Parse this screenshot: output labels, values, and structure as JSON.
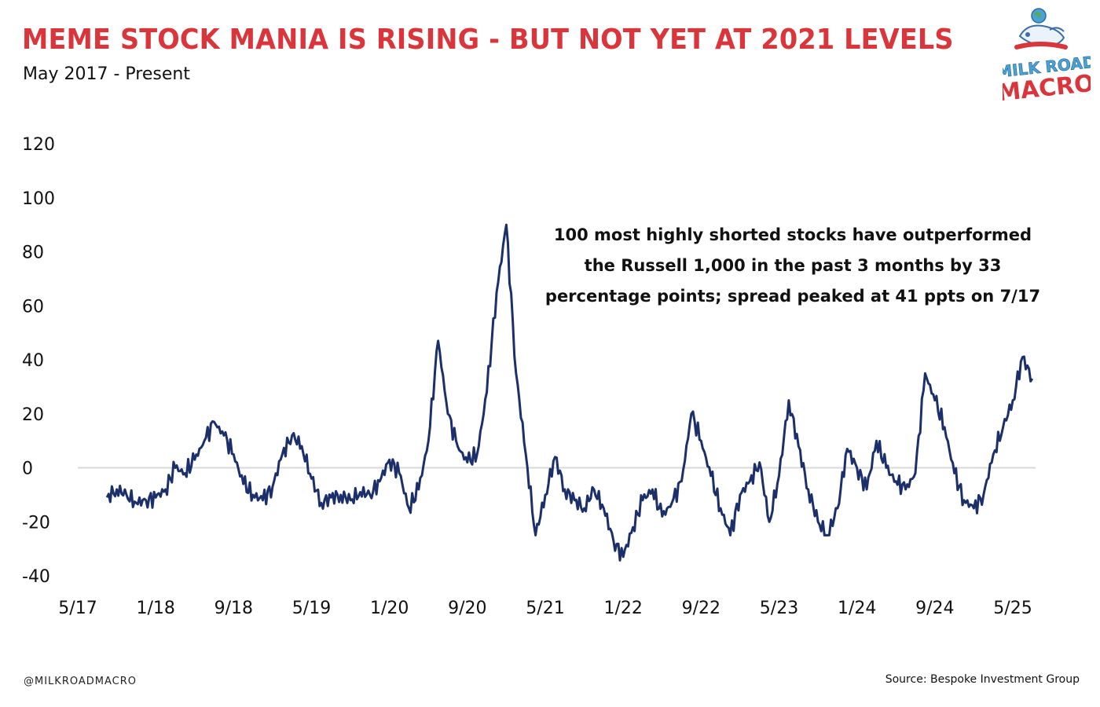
{
  "header": {
    "title": "MEME STOCK MANIA IS RISING - BUT NOT YET AT 2021 LEVELS",
    "subtitle": "May 2017 - Present"
  },
  "logo": {
    "line1": "MILK ROAD",
    "line2": "MACRO",
    "icon": "cow-globe-logo-icon"
  },
  "footer": {
    "handle": "@MILKROADMACRO",
    "source": "Source: Bespoke Investment Group"
  },
  "colors": {
    "title": "#d9353b",
    "line": "#1b2f6b",
    "zero_line": "#d9d9d9",
    "text": "#111111"
  },
  "chart_data": {
    "type": "line",
    "title": "",
    "xlabel": "",
    "ylabel": "",
    "ylim": [
      -40,
      120
    ],
    "yticks": [
      "120",
      "100",
      "80",
      "60",
      "40",
      "20",
      "0",
      "-20",
      "-40"
    ],
    "xticks": [
      "5/17",
      "1/18",
      "9/18",
      "5/19",
      "1/20",
      "9/20",
      "5/21",
      "1/22",
      "9/22",
      "5/23",
      "1/24",
      "9/24",
      "5/25"
    ],
    "grid": false,
    "legend": "none",
    "annotation": {
      "lines": [
        "100 most highly shorted stocks have outperformed",
        "the Russell 1,000 in the past 3 months by 33",
        "percentage points; spread peaked at 41 ppts on 7/17"
      ]
    },
    "series": [
      {
        "name": "",
        "x": [
          "2017-08",
          "2017-09",
          "2017-10",
          "2017-11",
          "2017-12",
          "2018-01",
          "2018-02",
          "2018-03",
          "2018-04",
          "2018-05",
          "2018-06",
          "2018-07",
          "2018-08",
          "2018-09",
          "2018-10",
          "2018-11",
          "2018-12",
          "2019-01",
          "2019-02",
          "2019-03",
          "2019-04",
          "2019-05",
          "2019-06",
          "2019-07",
          "2019-08",
          "2019-09",
          "2019-10",
          "2019-11",
          "2019-12",
          "2020-01",
          "2020-02",
          "2020-03",
          "2020-04",
          "2020-05",
          "2020-06",
          "2020-07",
          "2020-08",
          "2020-09",
          "2020-10",
          "2020-11",
          "2020-12",
          "2021-01",
          "2021-02",
          "2021-03",
          "2021-04",
          "2021-05",
          "2021-06",
          "2021-07",
          "2021-08",
          "2021-09",
          "2021-10",
          "2021-11",
          "2021-12",
          "2022-01",
          "2022-02",
          "2022-03",
          "2022-04",
          "2022-05",
          "2022-06",
          "2022-07",
          "2022-08",
          "2022-09",
          "2022-10",
          "2022-11",
          "2022-12",
          "2023-01",
          "2023-02",
          "2023-03",
          "2023-04",
          "2023-05",
          "2023-06",
          "2023-07",
          "2023-08",
          "2023-09",
          "2023-10",
          "2023-11",
          "2023-12",
          "2024-01",
          "2024-02",
          "2024-03",
          "2024-04",
          "2024-05",
          "2024-06",
          "2024-07",
          "2024-08",
          "2024-09",
          "2024-10",
          "2024-11",
          "2024-12",
          "2025-01",
          "2025-02",
          "2025-03",
          "2025-04",
          "2025-05",
          "2025-06",
          "2025-07"
        ],
        "values": [
          -11,
          -8,
          -10,
          -13,
          -12,
          -11,
          -8,
          0,
          -2,
          3,
          10,
          17,
          12,
          5,
          -6,
          -10,
          -12,
          -7,
          5,
          12,
          8,
          -4,
          -13,
          -11,
          -10,
          -12,
          -9,
          -10,
          -5,
          3,
          -2,
          -15,
          -8,
          10,
          47,
          20,
          8,
          2,
          5,
          28,
          65,
          90,
          35,
          5,
          -25,
          -10,
          4,
          -8,
          -12,
          -15,
          -8,
          -15,
          -27,
          -33,
          -22,
          -12,
          -8,
          -18,
          -13,
          -5,
          20,
          10,
          -3,
          -15,
          -25,
          -10,
          -5,
          2,
          -20,
          -3,
          25,
          8,
          -8,
          -20,
          -25,
          -15,
          7,
          0,
          -8,
          10,
          0,
          -5,
          -8,
          -2,
          35,
          25,
          15,
          -2,
          -12,
          -15,
          -10,
          5,
          15,
          25,
          41,
          33
        ]
      }
    ]
  }
}
